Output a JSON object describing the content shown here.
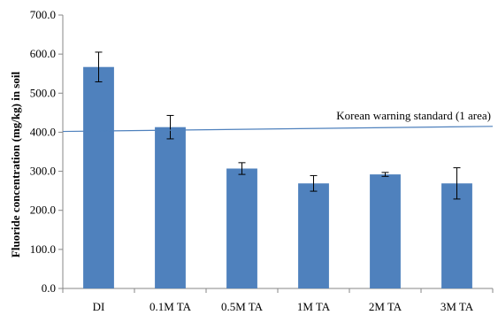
{
  "chart_data": {
    "type": "bar",
    "title": "",
    "xlabel": "",
    "ylabel": "Fluoride concentration (mg/kg) in soil",
    "ylim": [
      0,
      700
    ],
    "yticks": [
      "0.0",
      "100.0",
      "200.0",
      "300.0",
      "400.0",
      "500.0",
      "600.0",
      "700.0"
    ],
    "grid": false,
    "categories": [
      "DI",
      "0.1M TA",
      "0.5M TA",
      "1M TA",
      "2M TA",
      "3M TA"
    ],
    "values": [
      567,
      413,
      307,
      269,
      292,
      269
    ],
    "error": [
      38,
      30,
      15,
      20,
      5,
      40
    ],
    "bar_color": "#4f81bd",
    "reference_line": {
      "label": "Korean warning standard (1 area)",
      "y_start": 402,
      "y_end": 415,
      "color": "#4f81bd"
    }
  }
}
